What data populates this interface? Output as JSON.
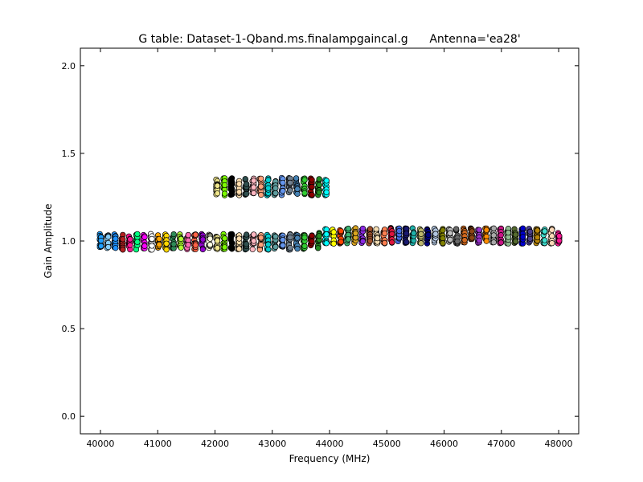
{
  "chart_data": {
    "type": "scatter",
    "title": "G table: Dataset-1-Qband.ms.finalampgaincal.g      Antenna='ea28'",
    "xlabel": "Frequency (MHz)",
    "ylabel": "Gain Amplitude",
    "xlim": [
      39650,
      48350
    ],
    "ylim": [
      -0.1,
      2.1
    ],
    "xticks": [
      40000,
      41000,
      42000,
      43000,
      44000,
      45000,
      46000,
      47000,
      48000
    ],
    "yticks": [
      0.0,
      0.5,
      1.0,
      1.5,
      2.0
    ],
    "grid": false,
    "legend": "none",
    "channels_per_spw": 2,
    "channel_spacing_mhz": 20,
    "spw_start_mhz": 40000,
    "spw_width_mhz": 128,
    "spw_count": 64,
    "spw_colors": [
      "#1f9fff",
      "#87cefa",
      "#1e90ff",
      "#b22222",
      "#ff1493",
      "#00ff7f",
      "#ff00ff",
      "#ffffff",
      "#ffa500",
      "#ffd700",
      "#2e8b57",
      "#adff2f",
      "#ff69b4",
      "#ff6347",
      "#9400d3",
      "#ffffe0",
      "#f0e68c",
      "#7cfc00",
      "#000000",
      "#ffdead",
      "#2f4f4f",
      "#ffb6c1",
      "#ffa07a",
      "#00ced1",
      "#5f9ea0",
      "#6495ed",
      "#708090",
      "#4682b4",
      "#32cd32",
      "#8b0000",
      "#228b22",
      "#00ffff",
      "#ffff00",
      "#ff4500",
      "#3cb371",
      "#daa520",
      "#8a2be2",
      "#a0522d",
      "#f5deb3",
      "#ff7f50",
      "#dc143c",
      "#4169e1",
      "#191970",
      "#20b2aa",
      "#bdb76b",
      "#000080",
      "#b0c4de",
      "#808000",
      "#c0c0c0",
      "#696969",
      "#d2691e",
      "#8b4513",
      "#9932cc",
      "#ff8c00",
      "#a9a9a9",
      "#c71585",
      "#8fbc8f",
      "#556b2f",
      "#0000cd",
      "#483d8b",
      "#b8860b",
      "#40e0d0",
      "#ffdab9",
      "#ff1493"
    ],
    "upper_group": {
      "spw_start": 16,
      "spw_end": 31,
      "amplitude_center": 1.31,
      "amplitude_spread": 0.05
    },
    "lower_group": {
      "amplitude_center": 0.995,
      "amplitude_spread": 0.045,
      "rising_from_mhz": 43800,
      "rising_center": 1.03
    }
  }
}
